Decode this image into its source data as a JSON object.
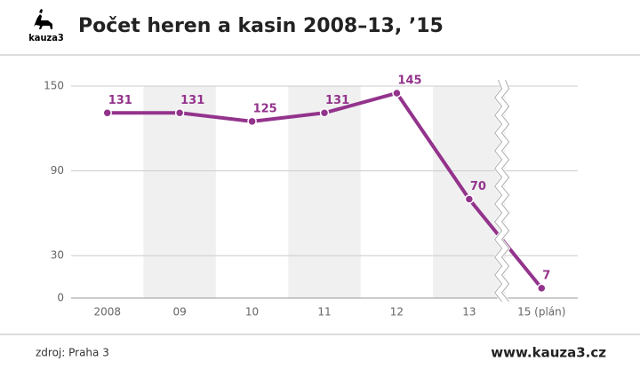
{
  "logo_text": "kauza3",
  "chart_data": {
    "type": "line",
    "title": "Počet heren a kasin 2008–13, ’15",
    "categories": [
      "2008",
      "09",
      "10",
      "11",
      "12",
      "13",
      "15 (plán)"
    ],
    "series": [
      {
        "name": "Počet heren a kasin",
        "color": "#93338c",
        "values": [
          131,
          131,
          125,
          131,
          145,
          70,
          7
        ]
      }
    ],
    "ylim": [
      0,
      150
    ],
    "yticks": [
      0,
      30,
      90,
      150
    ],
    "grid": true
  },
  "source": "zdroj: Praha 3",
  "website": "www.kauza3.cz"
}
